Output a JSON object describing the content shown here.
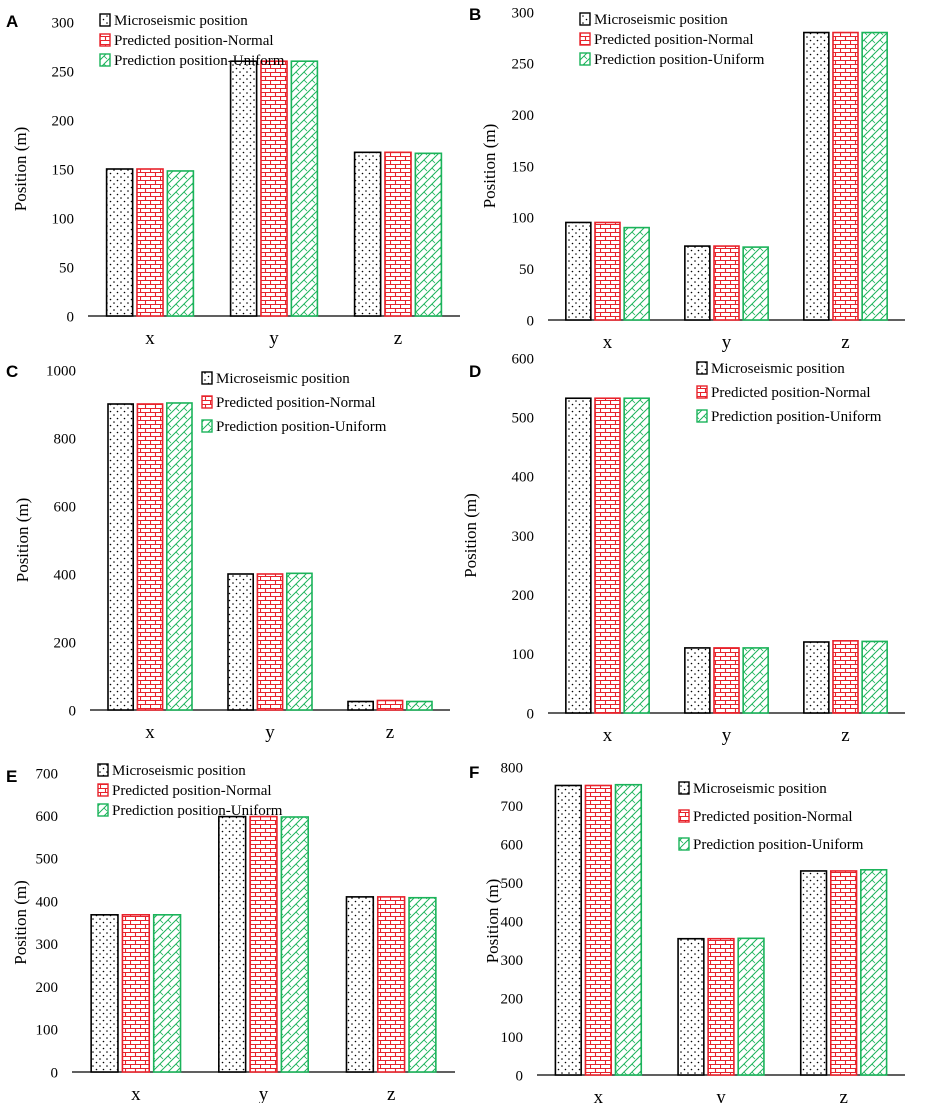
{
  "figure": {
    "colors": {
      "microseismic_stroke": "#000000",
      "normal_stroke": "#e8222b",
      "uniform_stroke": "#1bb35a",
      "axis": "#000000"
    },
    "legend_labels": [
      "Microseismic position",
      "Predicted position-Normal",
      "Prediction position-Uniform"
    ]
  },
  "chart_data": [
    {
      "panel": "A",
      "type": "bar",
      "ylabel": "Position (m)",
      "categories": [
        "x",
        "y",
        "z"
      ],
      "ylim": [
        0,
        300
      ],
      "yticks": [
        "0",
        "50",
        "100",
        "150",
        "200",
        "250",
        "300"
      ],
      "series": [
        {
          "name": "Microseismic position",
          "values": [
            150,
            260,
            167
          ]
        },
        {
          "name": "Predicted position-Normal",
          "values": [
            150,
            260,
            167
          ]
        },
        {
          "name": "Prediction position-Uniform",
          "values": [
            148,
            260,
            166
          ]
        }
      ]
    },
    {
      "panel": "B",
      "type": "bar",
      "ylabel": "Position (m)",
      "categories": [
        "x",
        "y",
        "z"
      ],
      "ylim": [
        0,
        300
      ],
      "yticks": [
        "0",
        "50",
        "100",
        "150",
        "200",
        "250",
        "300"
      ],
      "series": [
        {
          "name": "Microseismic position",
          "values": [
            95,
            72,
            280
          ]
        },
        {
          "name": "Predicted position-Normal",
          "values": [
            95,
            72,
            280
          ]
        },
        {
          "name": "Prediction position-Uniform",
          "values": [
            90,
            71,
            280
          ]
        }
      ]
    },
    {
      "panel": "C",
      "type": "bar",
      "ylabel": "Position (m)",
      "categories": [
        "x",
        "y",
        "z"
      ],
      "ylim": [
        0,
        1000
      ],
      "yticks": [
        "0",
        "200",
        "400",
        "600",
        "800",
        "1000"
      ],
      "series": [
        {
          "name": "Microseismic position",
          "values": [
            900,
            400,
            25
          ]
        },
        {
          "name": "Predicted position-Normal",
          "values": [
            900,
            400,
            28
          ]
        },
        {
          "name": "Prediction position-Uniform",
          "values": [
            903,
            402,
            25
          ]
        }
      ]
    },
    {
      "panel": "D",
      "type": "bar",
      "ylabel": "Position (m)",
      "categories": [
        "x",
        "y",
        "z"
      ],
      "ylim": [
        0,
        600
      ],
      "yticks": [
        "0",
        "100",
        "200",
        "300",
        "400",
        "500",
        "600"
      ],
      "series": [
        {
          "name": "Microseismic position",
          "values": [
            532,
            110,
            120
          ]
        },
        {
          "name": "Predicted position-Normal",
          "values": [
            532,
            110,
            122
          ]
        },
        {
          "name": "Prediction position-Uniform",
          "values": [
            532,
            110,
            121
          ]
        }
      ]
    },
    {
      "panel": "E",
      "type": "bar",
      "ylabel": "Position (m)",
      "categories": [
        "x",
        "y",
        "z"
      ],
      "ylim": [
        0,
        700
      ],
      "yticks": [
        "0",
        "100",
        "200",
        "300",
        "400",
        "500",
        "600",
        "700"
      ],
      "series": [
        {
          "name": "Microseismic position",
          "values": [
            368,
            598,
            410
          ]
        },
        {
          "name": "Predicted position-Normal",
          "values": [
            368,
            598,
            410
          ]
        },
        {
          "name": "Prediction position-Uniform",
          "values": [
            368,
            597,
            408
          ]
        }
      ]
    },
    {
      "panel": "F",
      "type": "bar",
      "ylabel": "Position (m)",
      "categories": [
        "x",
        "y",
        "z"
      ],
      "ylim": [
        0,
        800
      ],
      "yticks": [
        "0",
        "100",
        "200",
        "300",
        "400",
        "500",
        "600",
        "700",
        "800"
      ],
      "series": [
        {
          "name": "Microseismic position",
          "values": [
            752,
            354,
            530
          ]
        },
        {
          "name": "Predicted position-Normal",
          "values": [
            752,
            354,
            530
          ]
        },
        {
          "name": "Prediction position-Uniform",
          "values": [
            754,
            355,
            533
          ]
        }
      ]
    }
  ]
}
